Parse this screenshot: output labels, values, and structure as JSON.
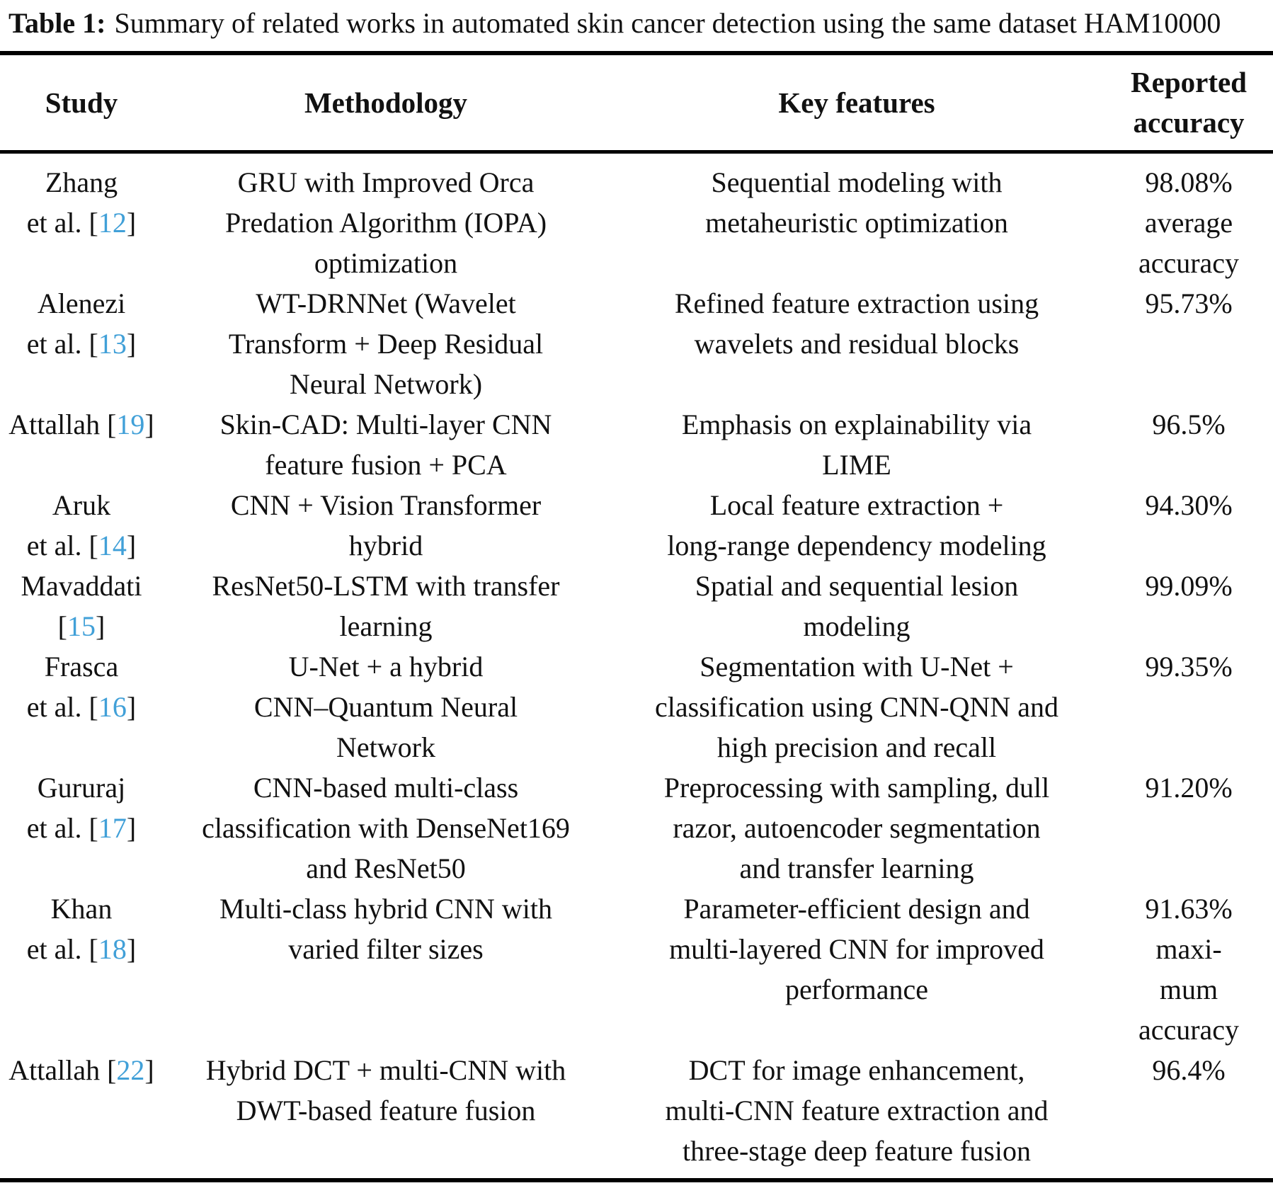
{
  "caption": {
    "label": "Table 1:",
    "text": "Summary of related works in automated skin cancer detection using the same dataset HAM10000"
  },
  "table": {
    "citation_color": "#41a0d8",
    "columns": [
      "Study",
      "Methodology",
      "Key features",
      "Reported accuracy"
    ],
    "header_lines": [
      [
        "Study"
      ],
      [
        "Methodology"
      ],
      [
        "Key features"
      ],
      [
        "Reported",
        "accuracy"
      ]
    ],
    "rows": [
      {
        "study": [
          "Zhang",
          "et al. [12]"
        ],
        "methodology": [
          "GRU with Improved Orca",
          "Predation Algorithm (IOPA)",
          "optimization"
        ],
        "key_features": [
          "Sequential modeling with",
          "metaheuristic optimization"
        ],
        "accuracy": [
          "98.08%",
          "average",
          "accuracy"
        ]
      },
      {
        "study": [
          "Alenezi",
          "et al. [13]"
        ],
        "methodology": [
          "WT-DRNNet (Wavelet",
          "Transform + Deep Residual",
          "Neural Network)"
        ],
        "key_features": [
          "Refined feature extraction using",
          "wavelets and residual blocks"
        ],
        "accuracy": [
          "95.73%"
        ]
      },
      {
        "study": [
          "Attallah [19]"
        ],
        "methodology": [
          "Skin-CAD: Multi-layer CNN",
          "feature fusion + PCA"
        ],
        "key_features": [
          "Emphasis on explainability via",
          "LIME"
        ],
        "accuracy": [
          "96.5%"
        ]
      },
      {
        "study": [
          "Aruk",
          "et al. [14]"
        ],
        "methodology": [
          "CNN + Vision Transformer",
          "hybrid"
        ],
        "key_features": [
          "Local feature extraction +",
          "long-range dependency modeling"
        ],
        "accuracy": [
          "94.30%"
        ]
      },
      {
        "study": [
          "Mavaddati",
          "[15]"
        ],
        "methodology": [
          "ResNet50-LSTM with transfer",
          "learning"
        ],
        "key_features": [
          "Spatial and sequential lesion",
          "modeling"
        ],
        "accuracy": [
          "99.09%"
        ]
      },
      {
        "study": [
          "Frasca",
          "et al. [16]"
        ],
        "methodology": [
          "U-Net + a hybrid",
          "CNN–Quantum Neural",
          "Network"
        ],
        "key_features": [
          "Segmentation with U-Net +",
          "classification using CNN-QNN and",
          "high precision and recall"
        ],
        "accuracy": [
          "99.35%"
        ]
      },
      {
        "study": [
          "Gururaj",
          "et al. [17]"
        ],
        "methodology": [
          "CNN-based multi-class",
          "classification with DenseNet169",
          "and ResNet50"
        ],
        "key_features": [
          "Preprocessing with sampling, dull",
          "razor, autoencoder segmentation",
          "and transfer learning"
        ],
        "accuracy": [
          "91.20%"
        ]
      },
      {
        "study": [
          "Khan",
          "et al. [18]"
        ],
        "methodology": [
          "Multi-class hybrid CNN with",
          "varied filter sizes"
        ],
        "key_features": [
          "Parameter-efficient design and",
          "multi-layered CNN for improved",
          "performance"
        ],
        "accuracy": [
          "91.63%",
          "maxi-",
          "mum",
          "accuracy"
        ]
      },
      {
        "study": [
          "Attallah [22]"
        ],
        "methodology": [
          "Hybrid DCT + multi-CNN with",
          "DWT-based feature fusion"
        ],
        "key_features": [
          "DCT for image enhancement,",
          "multi-CNN feature extraction and",
          "three-stage deep feature fusion"
        ],
        "accuracy": [
          "96.4%"
        ]
      }
    ]
  }
}
